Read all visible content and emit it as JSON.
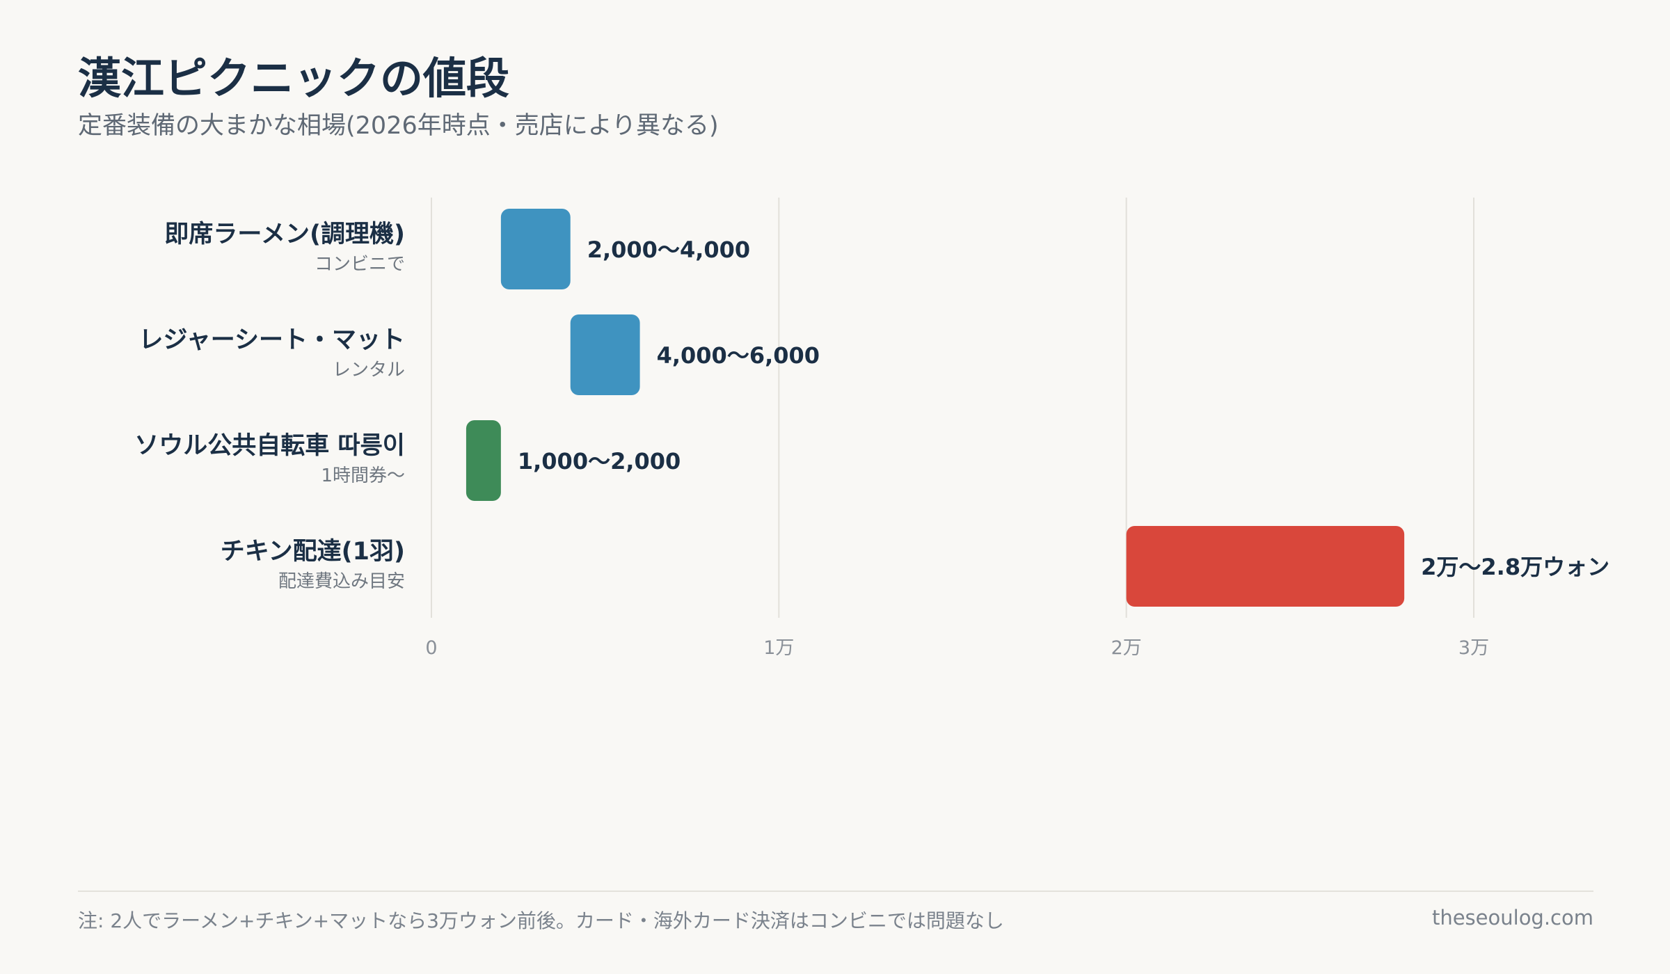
{
  "header": {
    "title": "漢江ピクニックの値段",
    "subtitle": "定番装備の大まかな相場(2026年時点・売店により異なる)"
  },
  "footer": {
    "note": "注: 2人でラーメン+チキン+マットなら3万ウォン前後。カード・海外カード決済はコンビニでは問題なし",
    "source": "theseoulog.com"
  },
  "chart_data": {
    "type": "bar",
    "orientation": "horizontal",
    "title": "漢江ピクニックの値段",
    "subtitle": "定番装備の大まかな相場(2026年時点・売店により異なる)",
    "xlim": [
      0,
      33000
    ],
    "x_ticks": [
      {
        "value": 0,
        "label": "0"
      },
      {
        "value": 10000,
        "label": "1万"
      },
      {
        "value": 20000,
        "label": "2万"
      },
      {
        "value": 30000,
        "label": "3万"
      }
    ],
    "grid": true,
    "items": [
      {
        "label": "即席ラーメン(調理機)",
        "sublabel": "コンビニで",
        "min": 2000,
        "max": 4000,
        "value_label": "2,000〜4,000",
        "color": "#3f93c0"
      },
      {
        "label": "レジャーシート・マット",
        "sublabel": "レンタル",
        "min": 4000,
        "max": 6000,
        "value_label": "4,000〜6,000",
        "color": "#3f93c0"
      },
      {
        "label": "ソウル公共自転車 따릉이",
        "sublabel": "1時間券〜",
        "min": 1000,
        "max": 2000,
        "value_label": "1,000〜2,000",
        "color": "#3e8b58"
      },
      {
        "label": "チキン配達(1羽)",
        "sublabel": "配達費込み目安",
        "min": 20000,
        "max": 28000,
        "value_label": "2万〜2.8万ウォン",
        "color": "#d9473b"
      }
    ]
  }
}
